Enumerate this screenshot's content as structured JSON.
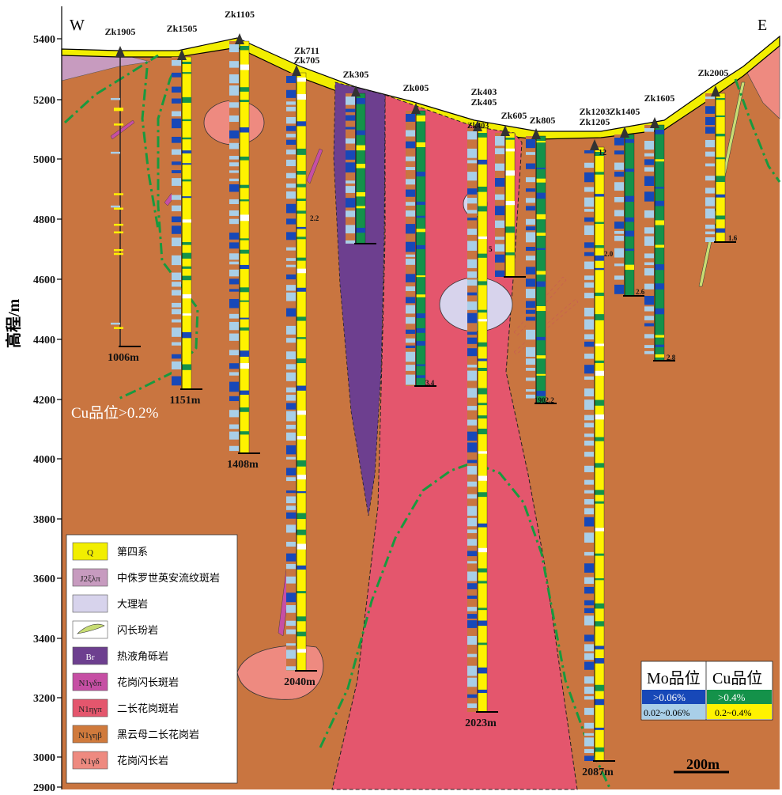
{
  "compass": {
    "west": "W",
    "east": "E"
  },
  "axis": {
    "label": "高程/m",
    "ticks": [
      "5400",
      "5200",
      "5000",
      "4800",
      "4600",
      "4400",
      "4200",
      "4000",
      "3800",
      "3600",
      "3400",
      "3200",
      "3000",
      "2900"
    ]
  },
  "cu_annotation": "Cu品位>0.2%",
  "drillholes": [
    {
      "name": "Zk1905",
      "depth": "1006m"
    },
    {
      "name": "Zk1505",
      "depth": "1151m"
    },
    {
      "name": "Zk1105",
      "depth": "1408m"
    },
    {
      "name": "Zk711",
      "name2": "Zk705",
      "depth": "2040m"
    },
    {
      "name": "Zk305",
      "depth": ""
    },
    {
      "name": "Zk005",
      "depth": ""
    },
    {
      "name": "Zk403",
      "name2": "Zk405",
      "depth": "2023m"
    },
    {
      "name": "Zk605",
      "depth": ""
    },
    {
      "name": "Zk805",
      "depth": ""
    },
    {
      "name": "Zk1203",
      "name2": "Zk1205",
      "depth": "2087m"
    },
    {
      "name": "Zk1405",
      "depth": ""
    },
    {
      "name": "Zk1605",
      "depth": ""
    },
    {
      "name": "Zk2005",
      "depth": ""
    }
  ],
  "small_labels": {
    "zk705_end": "2.2",
    "zk005_end": "3.4",
    "zk403_mid": "5",
    "zk805_end": "1902.2",
    "zk1205_mid": "2.0",
    "zk1405_end": "2.6",
    "zk1605_end": "2.8",
    "zk2005_end": "1.6",
    "zk403_top": "Zk403",
    "zk1203_top": "12"
  },
  "legend": {
    "items": [
      {
        "code": "Q",
        "label": "第四系",
        "color": "#f2ee00"
      },
      {
        "code": "J2ξλπ",
        "label": "中侏罗世英安流纹斑岩",
        "color": "#c79bbf"
      },
      {
        "code": "",
        "label": "大理岩",
        "color": "#d7d3ec"
      },
      {
        "code": "",
        "label": "闪长玢岩",
        "color": "#c8dd74"
      },
      {
        "code": "Br",
        "label": "热液角砾岩",
        "color": "#6d3f8f"
      },
      {
        "code": "N1γδπ",
        "label": "花岗闪长斑岩",
        "color": "#c64fa4"
      },
      {
        "code": "N1ηγπ",
        "label": "二长花岗斑岩",
        "color": "#e4566d"
      },
      {
        "code": "N1γηβ",
        "label": "黑云母二长花岗岩",
        "color": "#d07a3c"
      },
      {
        "code": "N1γδ",
        "label": "花岗闪长岩",
        "color": "#ee8a80"
      }
    ]
  },
  "grade_legend": {
    "mo_header": "Mo品位",
    "cu_header": "Cu品位",
    "mo_high": ">0.06%",
    "mo_low": "0.02~0.06%",
    "cu_high": ">0.4%",
    "cu_low": "0.2~0.4%",
    "colors": {
      "mo_high": "#1748b8",
      "mo_low": "#a9cfe8",
      "cu_high": "#14924a",
      "cu_low": "#fff200"
    }
  },
  "scale_bar": "200m",
  "colors": {
    "host": "#c97540",
    "porphyry": "#e4566d",
    "breccia": "#6d3f8f",
    "quaternary": "#f2ee00",
    "granodiorite": "#ee8a80",
    "marble": "#d7d3ec",
    "rhyolite": "#c79bbf",
    "cu_contour": "#189a3f"
  }
}
